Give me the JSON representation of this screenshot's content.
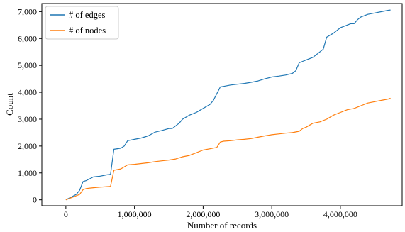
{
  "chart_data": {
    "type": "line",
    "xlabel": "Number of records",
    "ylabel": "Count",
    "xlim": [
      -350000,
      4900000
    ],
    "ylim": [
      -220,
      7300
    ],
    "x_ticks": [
      0,
      1000000,
      2000000,
      3000000,
      4000000
    ],
    "x_tick_labels": [
      "0",
      "1,000,000",
      "2,000,000",
      "3,000,000",
      "4,000,000"
    ],
    "y_ticks": [
      0,
      1000,
      2000,
      3000,
      4000,
      5000,
      6000,
      7000
    ],
    "y_tick_labels": [
      "0",
      "1,000",
      "2,000",
      "3,000",
      "4,000",
      "5,000",
      "6,000",
      "7,000"
    ],
    "grid": false,
    "legend_position": "top-left",
    "series": [
      {
        "name": "# of edges",
        "color": "#1f77b4",
        "x": [
          0,
          100000,
          150000,
          200000,
          250000,
          300000,
          400000,
          500000,
          600000,
          650000,
          700000,
          800000,
          850000,
          900000,
          1000000,
          1100000,
          1200000,
          1300000,
          1400000,
          1500000,
          1550000,
          1650000,
          1700000,
          1800000,
          1900000,
          2000000,
          2100000,
          2150000,
          2250000,
          2300000,
          2400000,
          2500000,
          2600000,
          2700000,
          2800000,
          2900000,
          3000000,
          3100000,
          3200000,
          3300000,
          3350000,
          3400000,
          3450000,
          3500000,
          3600000,
          3700000,
          3750000,
          3800000,
          3900000,
          4000000,
          4100000,
          4150000,
          4200000,
          4250000,
          4300000,
          4400000,
          4500000,
          4600000,
          4700000,
          4730000
        ],
        "y": [
          0,
          130,
          200,
          350,
          680,
          720,
          850,
          880,
          930,
          950,
          1880,
          1920,
          2000,
          2200,
          2250,
          2300,
          2380,
          2520,
          2580,
          2650,
          2650,
          2850,
          3000,
          3150,
          3250,
          3400,
          3550,
          3700,
          4200,
          4220,
          4270,
          4300,
          4330,
          4370,
          4420,
          4500,
          4570,
          4600,
          4640,
          4700,
          4800,
          5100,
          5150,
          5200,
          5300,
          5500,
          5600,
          6050,
          6200,
          6400,
          6500,
          6550,
          6550,
          6700,
          6800,
          6900,
          6950,
          7000,
          7050,
          7060
        ]
      },
      {
        "name": "# of nodes",
        "color": "#ff7f0e",
        "x": [
          0,
          100000,
          150000,
          200000,
          250000,
          300000,
          400000,
          500000,
          600000,
          650000,
          700000,
          800000,
          900000,
          1000000,
          1100000,
          1200000,
          1300000,
          1400000,
          1500000,
          1600000,
          1700000,
          1800000,
          1900000,
          2000000,
          2100000,
          2200000,
          2250000,
          2300000,
          2400000,
          2500000,
          2600000,
          2700000,
          2800000,
          2900000,
          3000000,
          3100000,
          3200000,
          3300000,
          3400000,
          3450000,
          3500000,
          3600000,
          3700000,
          3800000,
          3900000,
          4000000,
          4100000,
          4200000,
          4300000,
          4400000,
          4500000,
          4600000,
          4700000,
          4730000
        ],
        "y": [
          0,
          100,
          150,
          200,
          380,
          420,
          450,
          470,
          490,
          500,
          1100,
          1150,
          1300,
          1320,
          1350,
          1380,
          1420,
          1450,
          1480,
          1520,
          1600,
          1650,
          1750,
          1850,
          1900,
          1950,
          2150,
          2180,
          2200,
          2230,
          2250,
          2280,
          2330,
          2380,
          2420,
          2450,
          2480,
          2500,
          2550,
          2650,
          2700,
          2850,
          2900,
          3000,
          3150,
          3250,
          3350,
          3400,
          3500,
          3600,
          3650,
          3700,
          3750,
          3780
        ]
      }
    ]
  }
}
